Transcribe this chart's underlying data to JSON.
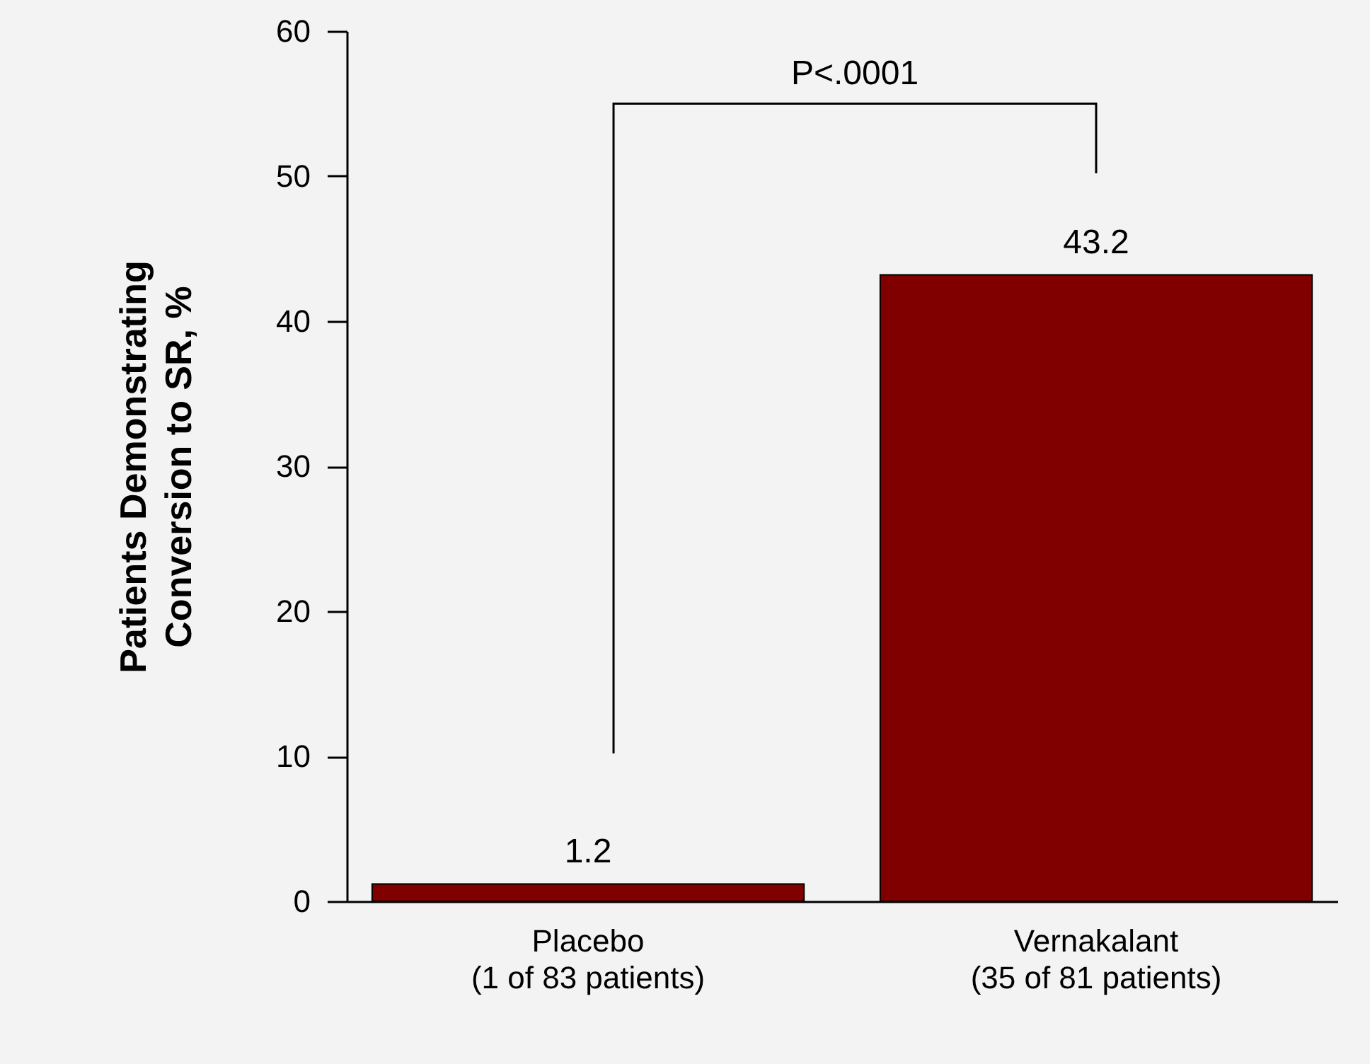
{
  "chart_data": {
    "type": "bar",
    "ylabel": "Patients Demonstrating\nConversion to SR, %",
    "categories": [
      "Placebo\n(1 of 83 patients)",
      "Vernakalant\n(35 of 81 patients)"
    ],
    "values": [
      1.2,
      43.2
    ],
    "color": "#800000",
    "ylim": [
      0,
      60
    ],
    "yticks": [
      0,
      10,
      20,
      30,
      40,
      50,
      60
    ],
    "grid": false,
    "data_labels": true,
    "annotations": [
      "P<.0001"
    ]
  }
}
